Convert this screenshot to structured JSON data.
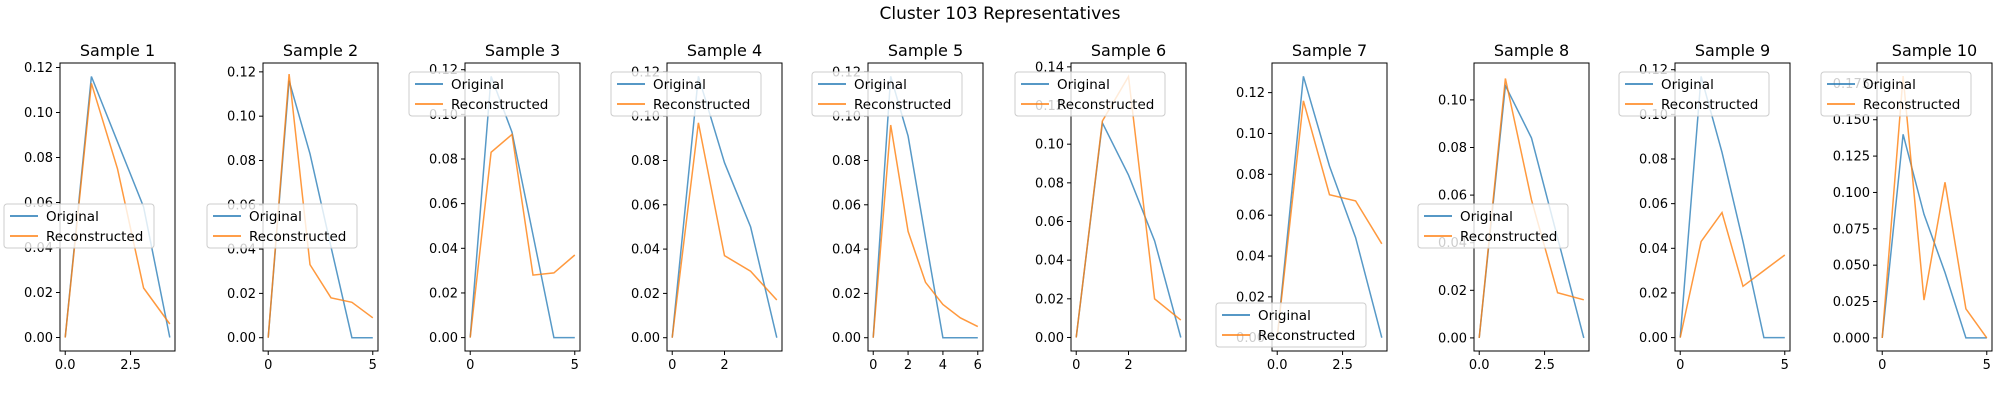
{
  "figure": {
    "title": "Cluster 103 Representatives"
  },
  "colors": {
    "original": "#1f77b4",
    "reconstructed": "#ff7f0e"
  },
  "chart_data": [
    {
      "type": "line",
      "title": "Sample 1",
      "x": [
        0,
        1,
        2,
        3,
        4
      ],
      "xlim": [
        -0.2,
        4.2
      ],
      "ylim": [
        -0.006,
        0.122
      ],
      "xticks": [
        0.0,
        2.5
      ],
      "xtick_labels": [
        "0.0",
        "2.5"
      ],
      "yticks": [
        0,
        0.02,
        0.04,
        0.06,
        0.08,
        0.1,
        0.12
      ],
      "ytick_labels": [
        "0.00",
        "0.02",
        "0.04",
        "0.06",
        "0.08",
        "0.10",
        "0.12"
      ],
      "legend_loc": "center left",
      "series": [
        {
          "name": "Original",
          "values": [
            0.0,
            0.116,
            0.087,
            0.058,
            0.0
          ]
        },
        {
          "name": "Reconstructed",
          "values": [
            0.0,
            0.113,
            0.075,
            0.022,
            0.006
          ]
        }
      ]
    },
    {
      "type": "line",
      "title": "Sample 2",
      "x": [
        0,
        1,
        2,
        3,
        4,
        5
      ],
      "xlim": [
        -0.25,
        5.25
      ],
      "ylim": [
        -0.006,
        0.124
      ],
      "xticks": [
        0,
        5
      ],
      "xtick_labels": [
        "0",
        "5"
      ],
      "yticks": [
        0,
        0.02,
        0.04,
        0.06,
        0.08,
        0.1,
        0.12
      ],
      "ytick_labels": [
        "0.00",
        "0.02",
        "0.04",
        "0.06",
        "0.08",
        "0.10",
        "0.12"
      ],
      "legend_loc": "center left",
      "series": [
        {
          "name": "Original",
          "values": [
            0.0,
            0.116,
            0.083,
            0.041,
            0.0,
            0.0
          ]
        },
        {
          "name": "Reconstructed",
          "values": [
            0.0,
            0.119,
            0.033,
            0.018,
            0.016,
            0.009
          ]
        }
      ]
    },
    {
      "type": "line",
      "title": "Sample 3",
      "x": [
        0,
        1,
        2,
        3,
        4,
        5
      ],
      "xlim": [
        -0.25,
        5.25
      ],
      "ylim": [
        -0.006,
        0.123
      ],
      "xticks": [
        0,
        5
      ],
      "xtick_labels": [
        "0",
        "5"
      ],
      "yticks": [
        0,
        0.02,
        0.04,
        0.06,
        0.08,
        0.1,
        0.12
      ],
      "ytick_labels": [
        "0.00",
        "0.02",
        "0.04",
        "0.06",
        "0.08",
        "0.10",
        "0.12"
      ],
      "legend_loc": "upper left",
      "series": [
        {
          "name": "Original",
          "values": [
            0.0,
            0.117,
            0.092,
            0.046,
            0.0,
            0.0
          ]
        },
        {
          "name": "Reconstructed",
          "values": [
            0.0,
            0.083,
            0.091,
            0.028,
            0.029,
            0.037
          ]
        }
      ]
    },
    {
      "type": "line",
      "title": "Sample 4",
      "x": [
        0,
        1,
        2,
        3,
        4
      ],
      "xlim": [
        -0.2,
        4.2
      ],
      "ylim": [
        -0.006,
        0.124
      ],
      "xticks": [
        0,
        2
      ],
      "xtick_labels": [
        "0",
        "2"
      ],
      "yticks": [
        0,
        0.02,
        0.04,
        0.06,
        0.08,
        0.1,
        0.12
      ],
      "ytick_labels": [
        "0.00",
        "0.02",
        "0.04",
        "0.06",
        "0.08",
        "0.10",
        "0.12"
      ],
      "legend_loc": "upper left",
      "series": [
        {
          "name": "Original",
          "values": [
            0.0,
            0.118,
            0.079,
            0.05,
            0.0
          ]
        },
        {
          "name": "Reconstructed",
          "values": [
            0.0,
            0.097,
            0.037,
            0.03,
            0.017
          ]
        }
      ]
    },
    {
      "type": "line",
      "title": "Sample 5",
      "x": [
        0,
        1,
        2,
        3,
        4,
        5,
        6
      ],
      "xlim": [
        -0.3,
        6.3
      ],
      "ylim": [
        -0.006,
        0.124
      ],
      "xticks": [
        0,
        2,
        4,
        6
      ],
      "xtick_labels": [
        "0",
        "2",
        "4",
        "6"
      ],
      "yticks": [
        0,
        0.02,
        0.04,
        0.06,
        0.08,
        0.1,
        0.12
      ],
      "ytick_labels": [
        "0.00",
        "0.02",
        "0.04",
        "0.06",
        "0.08",
        "0.10",
        "0.12"
      ],
      "legend_loc": "upper left",
      "series": [
        {
          "name": "Original",
          "values": [
            0.0,
            0.118,
            0.091,
            0.045,
            0.0,
            0.0,
            0.0
          ]
        },
        {
          "name": "Reconstructed",
          "values": [
            0.0,
            0.096,
            0.048,
            0.025,
            0.015,
            0.009,
            0.005
          ]
        }
      ]
    },
    {
      "type": "line",
      "title": "Sample 6",
      "x": [
        0,
        1,
        2,
        3,
        4
      ],
      "xlim": [
        -0.2,
        4.2
      ],
      "ylim": [
        -0.007,
        0.142
      ],
      "xticks": [
        0,
        2
      ],
      "xtick_labels": [
        "0",
        "2"
      ],
      "yticks": [
        0,
        0.02,
        0.04,
        0.06,
        0.08,
        0.1,
        0.12,
        0.14
      ],
      "ytick_labels": [
        "0.00",
        "0.02",
        "0.04",
        "0.06",
        "0.08",
        "0.10",
        "0.12",
        "0.14"
      ],
      "legend_loc": "upper left",
      "series": [
        {
          "name": "Original",
          "values": [
            0.0,
            0.111,
            0.084,
            0.05,
            0.0
          ]
        },
        {
          "name": "Reconstructed",
          "values": [
            0.0,
            0.112,
            0.135,
            0.02,
            0.009
          ]
        }
      ]
    },
    {
      "type": "line",
      "title": "Sample 7",
      "x": [
        0,
        1,
        2,
        3,
        4
      ],
      "xlim": [
        -0.2,
        4.2
      ],
      "ylim": [
        -0.0065,
        0.1345
      ],
      "xticks": [
        0.0,
        2.5
      ],
      "xtick_labels": [
        "0.0",
        "2.5"
      ],
      "yticks": [
        0,
        0.02,
        0.04,
        0.06,
        0.08,
        0.1,
        0.12
      ],
      "ytick_labels": [
        "0.00",
        "0.02",
        "0.04",
        "0.06",
        "0.08",
        "0.10",
        "0.12"
      ],
      "legend_loc": "lower left",
      "series": [
        {
          "name": "Original",
          "values": [
            0.0,
            0.128,
            0.084,
            0.049,
            0.0
          ]
        },
        {
          "name": "Reconstructed",
          "values": [
            0.0,
            0.116,
            0.07,
            0.067,
            0.046
          ]
        }
      ]
    },
    {
      "type": "line",
      "title": "Sample 8",
      "x": [
        0,
        1,
        2,
        3,
        4
      ],
      "xlim": [
        -0.2,
        4.2
      ],
      "ylim": [
        -0.0055,
        0.1155
      ],
      "xticks": [
        0.0,
        2.5
      ],
      "xtick_labels": [
        "0.0",
        "2.5"
      ],
      "yticks": [
        0,
        0.02,
        0.04,
        0.06,
        0.08,
        0.1
      ],
      "ytick_labels": [
        "0.00",
        "0.02",
        "0.04",
        "0.06",
        "0.08",
        "0.10"
      ],
      "legend_loc": "center left",
      "series": [
        {
          "name": "Original",
          "values": [
            0.0,
            0.106,
            0.084,
            0.042,
            0.0
          ]
        },
        {
          "name": "Reconstructed",
          "values": [
            0.0,
            0.109,
            0.058,
            0.019,
            0.016
          ]
        }
      ]
    },
    {
      "type": "line",
      "title": "Sample 9",
      "x": [
        0,
        1,
        2,
        3,
        4,
        5
      ],
      "xlim": [
        -0.25,
        5.25
      ],
      "ylim": [
        -0.006,
        0.123
      ],
      "xticks": [
        0,
        5
      ],
      "xtick_labels": [
        "0",
        "5"
      ],
      "yticks": [
        0,
        0.02,
        0.04,
        0.06,
        0.08,
        0.1,
        0.12
      ],
      "ytick_labels": [
        "0.00",
        "0.02",
        "0.04",
        "0.06",
        "0.08",
        "0.10",
        "0.12"
      ],
      "legend_loc": "upper left",
      "series": [
        {
          "name": "Original",
          "values": [
            0.0,
            0.117,
            0.083,
            0.043,
            0.0,
            0.0
          ]
        },
        {
          "name": "Reconstructed",
          "values": [
            0.0,
            0.043,
            0.056,
            0.023,
            0.03,
            0.037
          ]
        }
      ]
    },
    {
      "type": "line",
      "title": "Sample 10",
      "x": [
        0,
        1,
        2,
        3,
        4,
        5
      ],
      "xlim": [
        -0.25,
        5.25
      ],
      "ylim": [
        -0.009,
        0.189
      ],
      "xticks": [
        0,
        5
      ],
      "xtick_labels": [
        "0",
        "5"
      ],
      "yticks": [
        0,
        0.025,
        0.05,
        0.075,
        0.1,
        0.125,
        0.15,
        0.175
      ],
      "ytick_labels": [
        "0.000",
        "0.025",
        "0.050",
        "0.075",
        "0.100",
        "0.125",
        "0.150",
        "0.175"
      ],
      "legend_loc": "upper left",
      "series": [
        {
          "name": "Original",
          "values": [
            0.0,
            0.14,
            0.085,
            0.045,
            0.0,
            0.0
          ]
        },
        {
          "name": "Reconstructed",
          "values": [
            0.0,
            0.18,
            0.026,
            0.107,
            0.02,
            0.0
          ]
        }
      ]
    }
  ]
}
